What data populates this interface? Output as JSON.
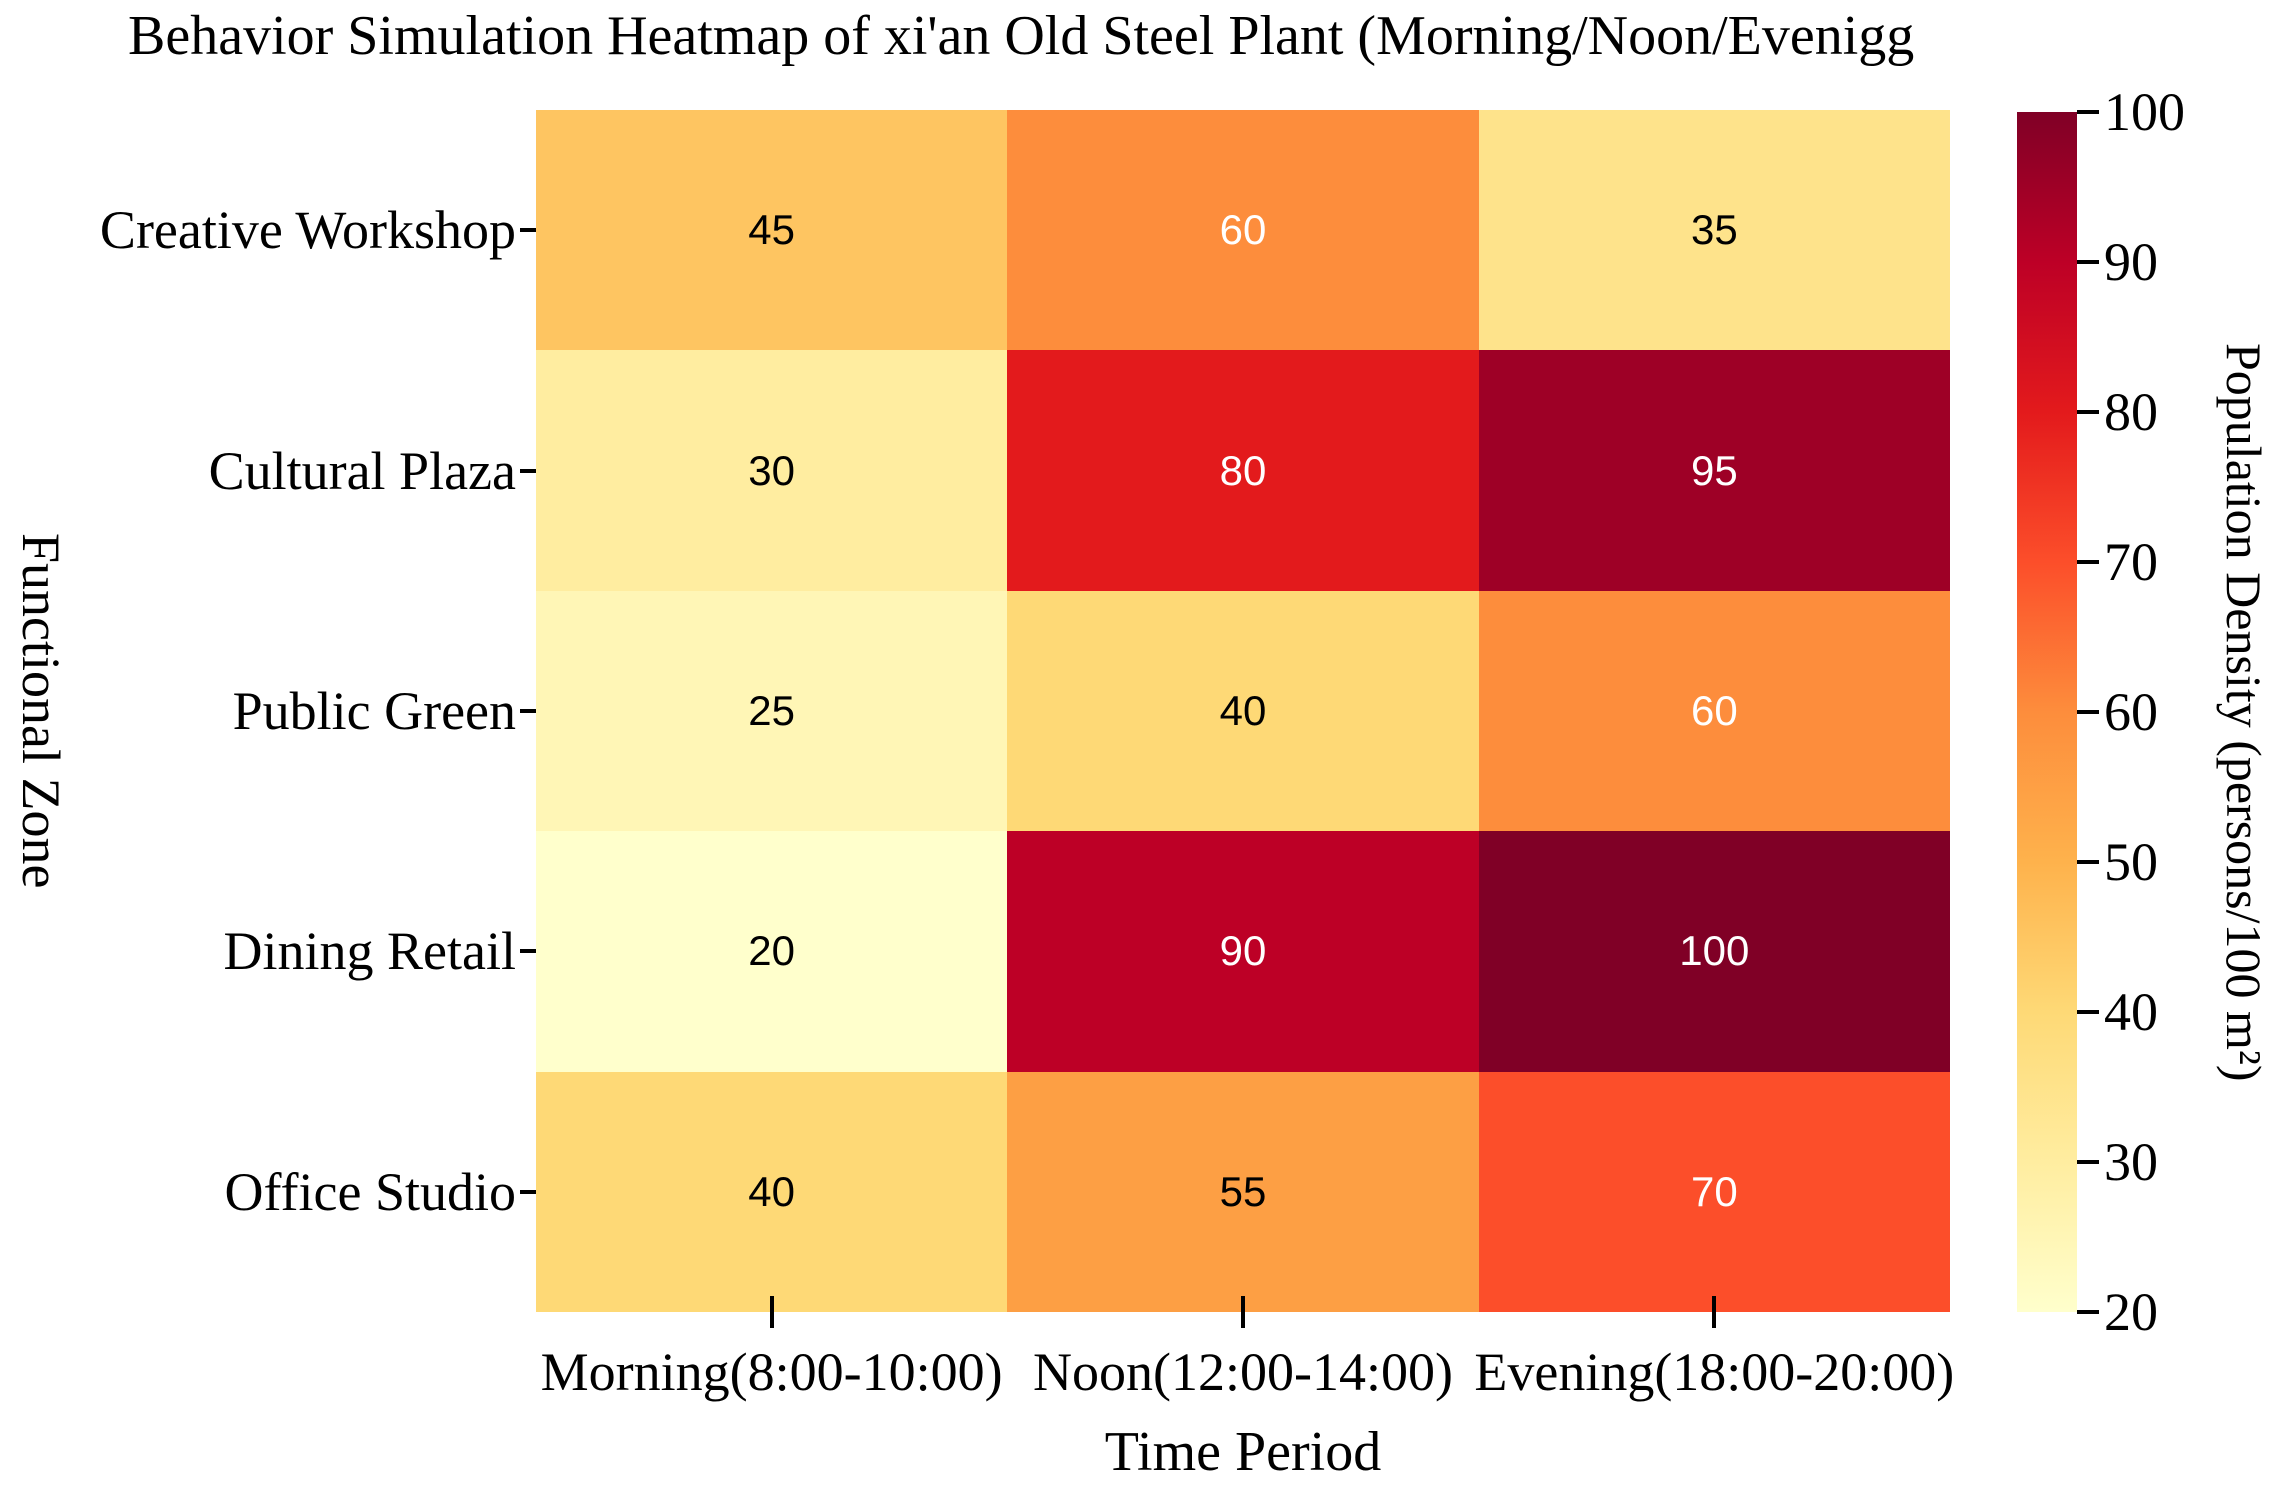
{
  "title": "Behavior Simulation Heatmap of xi'an Old Steel Plant (Morning/Noon/Evenigg",
  "axes": {
    "x_label": "Time Period",
    "y_label": "Functional Zone"
  },
  "colorbar": {
    "label": "Population Density (persons/100 m²)",
    "ticks": [
      100,
      90,
      80,
      70,
      60,
      50,
      40,
      30,
      20
    ]
  },
  "chart_data": {
    "type": "heatmap",
    "title": "Behavior Simulation Heatmap of xi'an Old Steel Plant (Morning/Noon/Evenigg",
    "xlabel": "Time Period",
    "ylabel": "Functional Zone",
    "x_categories": [
      "Morning(8:00-10:00)",
      "Noon(12:00-14:00)",
      "Evening(18:00-20:00)"
    ],
    "y_categories": [
      "Creative Workshop",
      "Cultural Plaza",
      "Public Green",
      "Dining Retail",
      "Office Studio"
    ],
    "values": [
      [
        45,
        60,
        35
      ],
      [
        30,
        80,
        95
      ],
      [
        25,
        40,
        60
      ],
      [
        20,
        90,
        100
      ],
      [
        40,
        55,
        70
      ]
    ],
    "colormap": "YlOrRd",
    "vmin": 20,
    "vmax": 100,
    "colorbar_label": "Population Density (persons/100 m²)",
    "colorbar_ticks": [
      100,
      90,
      80,
      70,
      60,
      50,
      40,
      30,
      20
    ],
    "legend_position": "right",
    "grid": false,
    "cell_colors": [
      [
        "#fec561",
        "#fd8d3c",
        "#fee38b"
      ],
      [
        "#ffeda0",
        "#e31a1c",
        "#9e0026"
      ],
      [
        "#fff6b6",
        "#fed976",
        "#fd8d3c"
      ],
      [
        "#ffffcc",
        "#bd0026",
        "#800026"
      ],
      [
        "#fed976",
        "#fd9f44",
        "#fc4e2a"
      ]
    ],
    "annotation_colors": [
      [
        "#000000",
        "#ffffff",
        "#000000"
      ],
      [
        "#000000",
        "#ffffff",
        "#ffffff"
      ],
      [
        "#000000",
        "#000000",
        "#ffffff"
      ],
      [
        "#000000",
        "#ffffff",
        "#ffffff"
      ],
      [
        "#000000",
        "#000000",
        "#ffffff"
      ]
    ]
  }
}
